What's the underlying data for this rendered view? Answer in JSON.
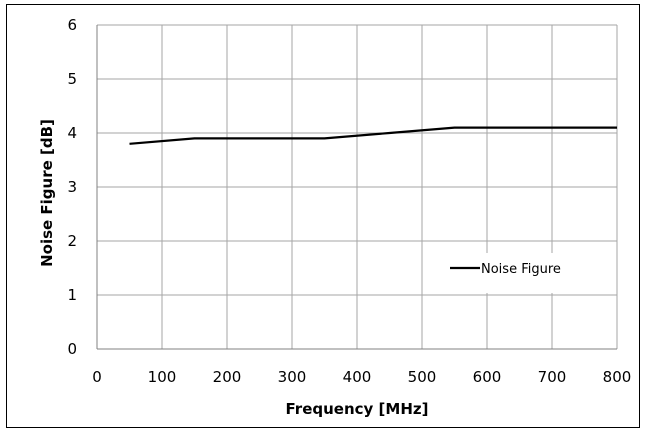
{
  "chart_data": {
    "type": "line",
    "title": "",
    "xlabel": "Frequency [MHz]",
    "ylabel": "Noise Figure [dB]",
    "xlim": [
      0,
      800
    ],
    "ylim": [
      0,
      6
    ],
    "xticks": [
      0,
      100,
      200,
      300,
      400,
      500,
      600,
      700,
      800
    ],
    "yticks": [
      0,
      1,
      2,
      3,
      4,
      5,
      6
    ],
    "grid": true,
    "legend_position": "right",
    "series": [
      {
        "name": "Noise Figure",
        "color": "#000000",
        "x": [
          50,
          150,
          250,
          350,
          450,
          550,
          650,
          750,
          800
        ],
        "y": [
          3.8,
          3.9,
          3.9,
          3.9,
          4.0,
          4.1,
          4.1,
          4.1,
          4.1
        ]
      }
    ]
  }
}
